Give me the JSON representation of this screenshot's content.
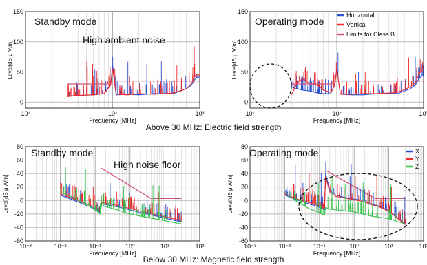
{
  "captions": {
    "top": "Above 30 MHz: Electric field strength",
    "bottom": "Below 30 MHz: Magnetic field strength"
  },
  "colors": {
    "blue": "#2a4fd1",
    "red": "#ee2a2a",
    "pink": "#d0567a",
    "green": "#36c04c",
    "grid": "#c8c8c8",
    "ellipse": "#111111"
  },
  "chart_data": [
    {
      "type": "line",
      "title": "Standby mode",
      "annotation": "High ambient noise",
      "xlabel": "Frequency [MHz]",
      "ylabel": "Level[dB μ V/m]",
      "xscale": "log",
      "xlim": [
        10,
        1000
      ],
      "ylim": [
        -10,
        150
      ],
      "xticks": [
        "10¹",
        "10²",
        "10³"
      ],
      "yticks": [
        "0",
        "50",
        "100",
        "150"
      ],
      "grid": true,
      "legend": null,
      "series": [
        {
          "color": "blue",
          "spikes": true,
          "points": [
            [
              30,
              10
            ],
            [
              40,
              11
            ],
            [
              60,
              12
            ],
            [
              80,
              14
            ],
            [
              95,
              30
            ],
            [
              100,
              60
            ],
            [
              110,
              12
            ],
            [
              150,
              13
            ],
            [
              200,
              12
            ],
            [
              300,
              14
            ],
            [
              500,
              14
            ],
            [
              700,
              22
            ],
            [
              800,
              28
            ],
            [
              900,
              40
            ],
            [
              1000,
              42
            ]
          ]
        },
        {
          "color": "red",
          "spikes": true,
          "points": [
            [
              30,
              9
            ],
            [
              40,
              11
            ],
            [
              60,
              12
            ],
            [
              80,
              14
            ],
            [
              95,
              28
            ],
            [
              100,
              55
            ],
            [
              110,
              13
            ],
            [
              150,
              12
            ],
            [
              200,
              14
            ],
            [
              300,
              13
            ],
            [
              500,
              15
            ],
            [
              700,
              22
            ],
            [
              800,
              30
            ],
            [
              900,
              45
            ],
            [
              1000,
              45
            ]
          ]
        },
        {
          "color": "pink",
          "points": [
            [
              30,
              30
            ],
            [
              88,
              30
            ],
            [
              88,
              35
            ],
            [
              1000,
              35
            ]
          ]
        }
      ]
    },
    {
      "type": "line",
      "title": "Operating mode",
      "xlabel": "Frequency [MHz]",
      "ylabel": "Level[dB μ V/m]",
      "xscale": "log",
      "xlim": [
        10,
        1000
      ],
      "ylim": [
        -10,
        150
      ],
      "xticks": [
        "10¹",
        "10²",
        "10³"
      ],
      "yticks": [
        "0",
        "50",
        "100",
        "150"
      ],
      "grid": true,
      "legend_position": "top-right",
      "series": [
        {
          "name": "Horizontal",
          "color": "blue",
          "spikes": true,
          "points": [
            [
              30,
              25
            ],
            [
              35,
              22
            ],
            [
              40,
              20
            ],
            [
              50,
              18
            ],
            [
              60,
              15
            ],
            [
              70,
              14
            ],
            [
              85,
              14
            ],
            [
              95,
              30
            ],
            [
              100,
              55
            ],
            [
              110,
              13
            ],
            [
              150,
              12
            ],
            [
              200,
              12
            ],
            [
              300,
              14
            ],
            [
              500,
              14
            ],
            [
              700,
              22
            ],
            [
              800,
              28
            ],
            [
              900,
              40
            ],
            [
              1000,
              45
            ]
          ]
        },
        {
          "name": "Vertical",
          "color": "red",
          "spikes": true,
          "points": [
            [
              30,
              12
            ],
            [
              35,
              32
            ],
            [
              40,
              38
            ],
            [
              50,
              30
            ],
            [
              60,
              28
            ],
            [
              70,
              20
            ],
            [
              85,
              16
            ],
            [
              95,
              28
            ],
            [
              100,
              55
            ],
            [
              110,
              13
            ],
            [
              150,
              13
            ],
            [
              200,
              14
            ],
            [
              300,
              14
            ],
            [
              500,
              16
            ],
            [
              700,
              25
            ],
            [
              800,
              32
            ],
            [
              900,
              48
            ],
            [
              1000,
              55
            ]
          ]
        },
        {
          "name": "Limits for Class B",
          "color": "pink",
          "points": [
            [
              30,
              30
            ],
            [
              88,
              30
            ],
            [
              88,
              35
            ],
            [
              1000,
              35
            ]
          ]
        }
      ]
    },
    {
      "type": "line",
      "title": "Standby mode",
      "annotation": "High noise floor",
      "xlabel": "Frequency [MHz]",
      "ylabel": "Level[dB μ A/m]",
      "xscale": "log",
      "xlim": [
        0.001,
        100
      ],
      "ylim": [
        -60,
        80
      ],
      "xticks": [
        "10⁻³",
        "10⁻²",
        "10⁻¹",
        "10⁰",
        "10¹",
        "10²"
      ],
      "yticks": [
        "-60",
        "-40",
        "-20",
        "0",
        "20",
        "40",
        "60",
        "80"
      ],
      "grid": true,
      "legend": null,
      "series": [
        {
          "color": "pink",
          "points": [
            [
              0.15,
              48
            ],
            [
              4,
              3
            ],
            [
              30,
              3
            ]
          ]
        },
        {
          "color": "blue",
          "spikes": true,
          "points": [
            [
              0.01,
              8
            ],
            [
              0.02,
              2
            ],
            [
              0.05,
              -6
            ],
            [
              0.1,
              -12
            ],
            [
              0.14,
              -18
            ],
            [
              0.15,
              -5
            ],
            [
              0.2,
              -6
            ],
            [
              0.5,
              -10
            ],
            [
              1,
              -14
            ],
            [
              3,
              -20
            ],
            [
              10,
              -26
            ],
            [
              30,
              -32
            ]
          ]
        },
        {
          "color": "red",
          "spikes": true,
          "points": [
            [
              0.01,
              10
            ],
            [
              0.02,
              4
            ],
            [
              0.05,
              -4
            ],
            [
              0.1,
              -10
            ],
            [
              0.14,
              -16
            ],
            [
              0.15,
              -3
            ],
            [
              0.2,
              -4
            ],
            [
              0.5,
              -8
            ],
            [
              1,
              -12
            ],
            [
              3,
              -18
            ],
            [
              10,
              -24
            ],
            [
              30,
              -30
            ]
          ]
        },
        {
          "color": "green",
          "spikes": true,
          "points": [
            [
              0.01,
              12
            ],
            [
              0.02,
              6
            ],
            [
              0.05,
              -5
            ],
            [
              0.1,
              -14
            ],
            [
              0.14,
              -20
            ],
            [
              0.15,
              -8
            ],
            [
              0.2,
              -9
            ],
            [
              0.5,
              -15
            ],
            [
              1,
              -20
            ],
            [
              3,
              -25
            ],
            [
              10,
              -30
            ],
            [
              30,
              -35
            ]
          ]
        }
      ]
    },
    {
      "type": "line",
      "title": "Operating mode",
      "xlabel": "Frequency [MHz]",
      "ylabel": "Level[dB μ A/m]",
      "xscale": "log",
      "xlim": [
        0.001,
        100
      ],
      "ylim": [
        -60,
        80
      ],
      "xticks": [
        "10⁻³",
        "10⁻²",
        "10⁻¹",
        "10⁰",
        "10¹",
        "10²"
      ],
      "yticks": [
        "-60",
        "-40",
        "-20",
        "0",
        "20",
        "40",
        "60",
        "80"
      ],
      "grid": true,
      "legend_position": "top-right",
      "series": [
        {
          "color": "pink",
          "points": [
            [
              0.15,
              45
            ],
            [
              4,
              3
            ],
            [
              30,
              3
            ]
          ]
        },
        {
          "name": "X",
          "color": "blue",
          "spikes": true,
          "points": [
            [
              0.01,
              8
            ],
            [
              0.02,
              2
            ],
            [
              0.05,
              -5
            ],
            [
              0.1,
              -10
            ],
            [
              0.14,
              -14
            ],
            [
              0.15,
              40
            ],
            [
              0.2,
              15
            ],
            [
              0.3,
              8
            ],
            [
              0.5,
              5
            ],
            [
              1,
              2
            ],
            [
              2,
              0
            ],
            [
              3,
              -5
            ],
            [
              5,
              -8
            ],
            [
              10,
              -15
            ],
            [
              30,
              -35
            ]
          ]
        },
        {
          "name": "Y",
          "color": "red",
          "spikes": true,
          "points": [
            [
              0.01,
              10
            ],
            [
              0.02,
              3
            ],
            [
              0.05,
              -3
            ],
            [
              0.1,
              -8
            ],
            [
              0.14,
              -12
            ],
            [
              0.15,
              35
            ],
            [
              0.2,
              12
            ],
            [
              0.3,
              6
            ],
            [
              0.5,
              4
            ],
            [
              1,
              1
            ],
            [
              2,
              -2
            ],
            [
              3,
              -6
            ],
            [
              5,
              -9
            ],
            [
              10,
              -16
            ],
            [
              30,
              -36
            ]
          ]
        },
        {
          "name": "Z",
          "color": "green",
          "spikes": true,
          "points": [
            [
              0.01,
              12
            ],
            [
              0.02,
              0
            ],
            [
              0.05,
              -12
            ],
            [
              0.1,
              -18
            ],
            [
              0.14,
              -22
            ],
            [
              0.15,
              -10
            ],
            [
              0.2,
              -13
            ],
            [
              0.5,
              -15
            ],
            [
              1,
              -17
            ],
            [
              3,
              -23
            ],
            [
              10,
              -27
            ],
            [
              30,
              -35
            ]
          ]
        }
      ]
    }
  ]
}
